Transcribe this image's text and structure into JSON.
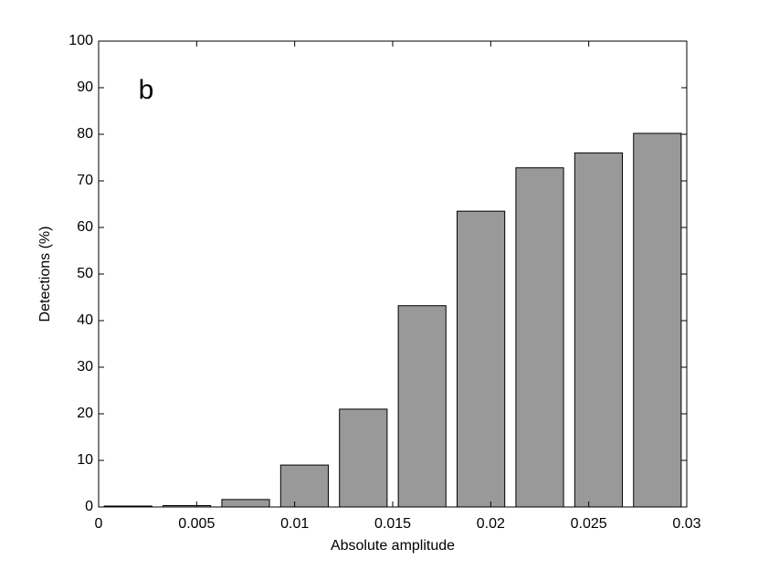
{
  "chart_data": {
    "type": "bar",
    "annotation": "b",
    "xlabel": "Absolute amplitude",
    "ylabel": "Detections (%)",
    "x": [
      0.0015,
      0.0045,
      0.0075,
      0.0105,
      0.0135,
      0.0165,
      0.0195,
      0.0225,
      0.0255,
      0.0285
    ],
    "values": [
      0.2,
      0.3,
      1.6,
      9,
      21,
      43.2,
      63.5,
      72.8,
      76,
      80.2
    ],
    "color": "#999999",
    "xlim": [
      0,
      0.03
    ],
    "xticks": [
      0,
      0.005,
      0.01,
      0.015,
      0.02,
      0.025,
      0.03
    ],
    "ylim": [
      0,
      100
    ],
    "yticks": [
      0,
      10,
      20,
      30,
      40,
      50,
      60,
      70,
      80,
      90,
      100
    ],
    "grid": false
  }
}
